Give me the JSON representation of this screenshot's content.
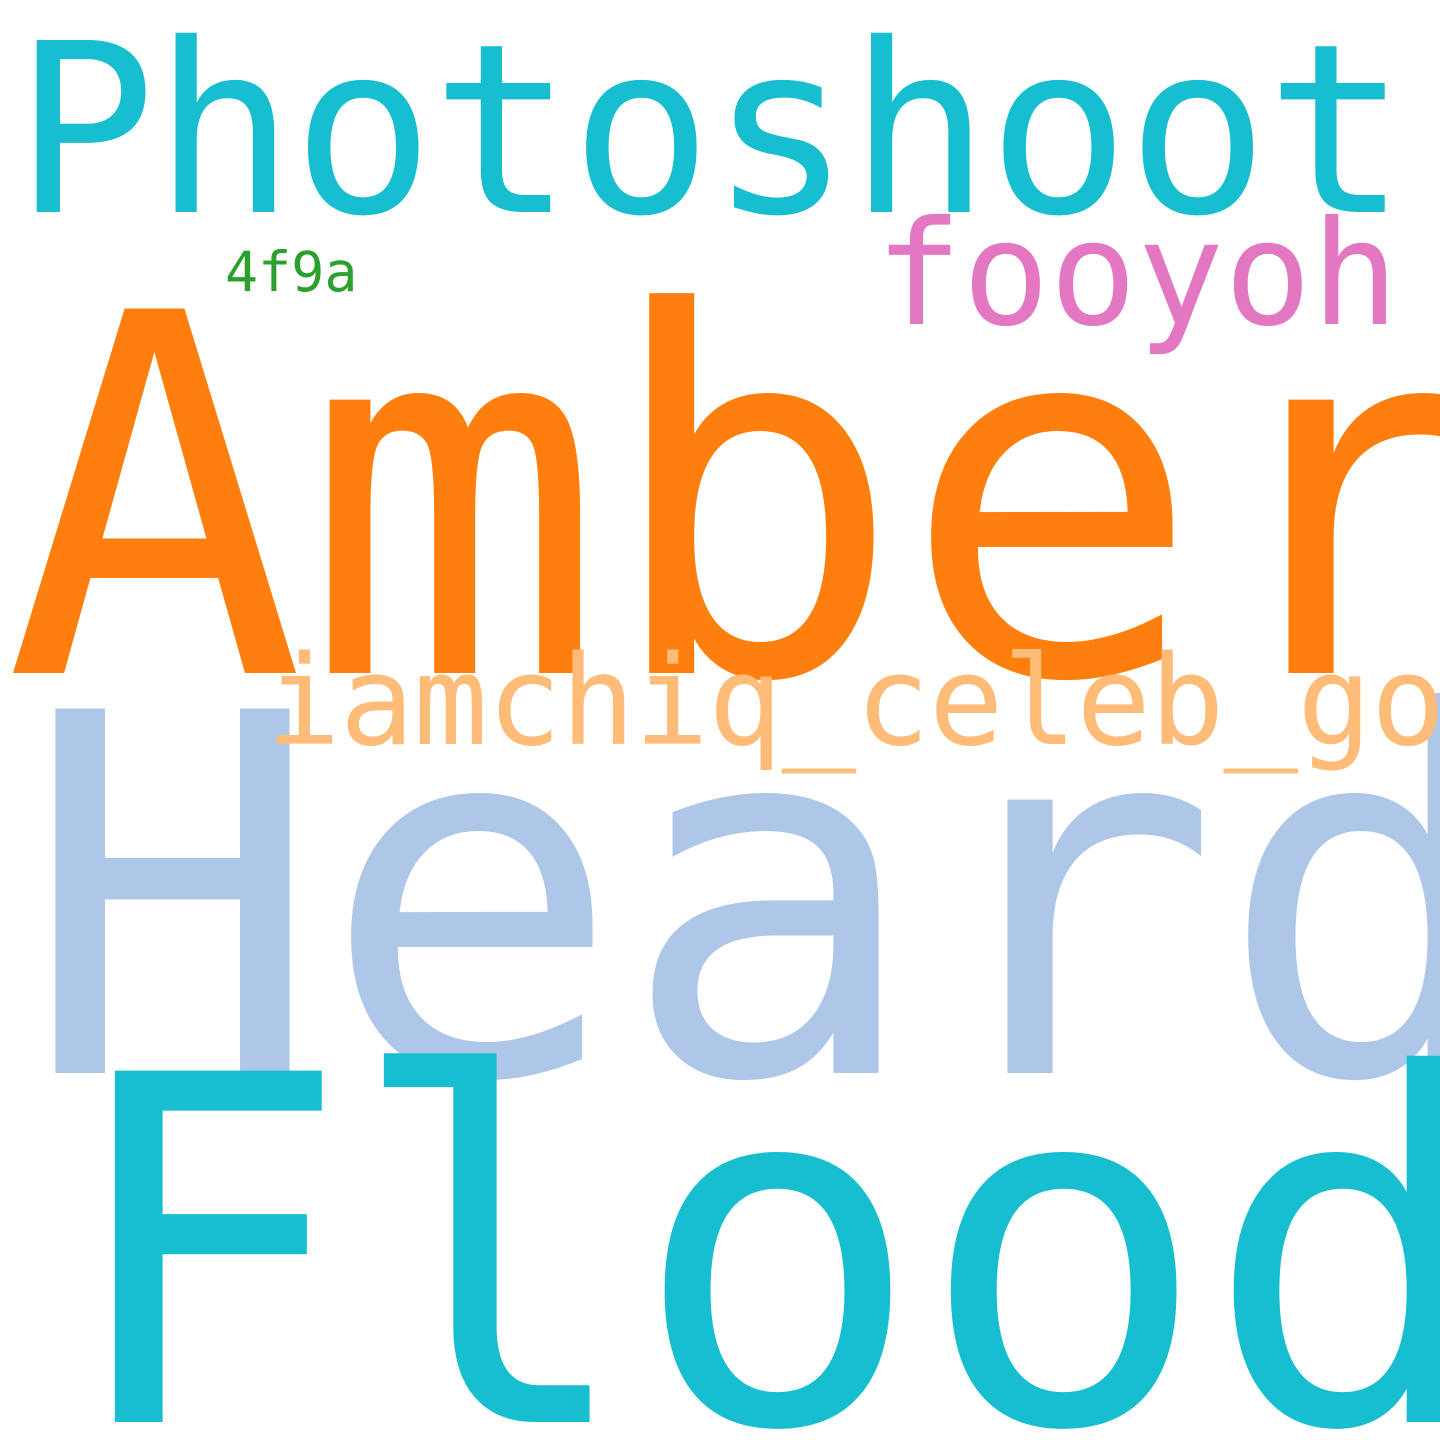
{
  "words": [
    {
      "text": "Heard",
      "color": "#aec7e8"
    },
    {
      "text": "Flood",
      "color": "#17becf"
    },
    {
      "text": "Amber",
      "color": "#ff7f0e"
    },
    {
      "text": "Photoshoot",
      "color": "#17becf"
    },
    {
      "text": "fooyoh",
      "color": "#e377c2"
    },
    {
      "text": "iamchiq_celeb_gossip",
      "color": "#ffbb78"
    },
    {
      "text": "4f9a",
      "color": "#2ca02c"
    }
  ]
}
